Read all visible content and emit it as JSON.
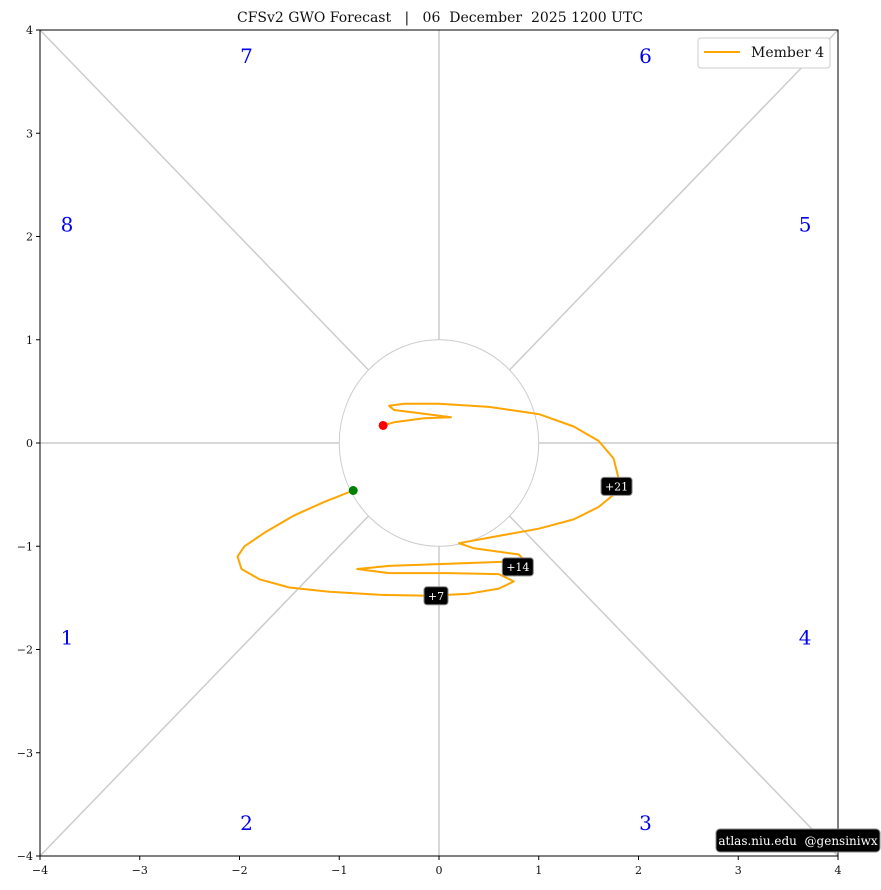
{
  "chart_data": {
    "type": "line",
    "title": "CFSv2 GWO Forecast   |   06  December  2025 1200 UTC",
    "xlim": [
      -4,
      4
    ],
    "ylim": [
      -4,
      4
    ],
    "xticks": [
      "−4",
      "−3",
      "−2",
      "−1",
      "0",
      "1",
      "2",
      "3",
      "4"
    ],
    "yticks": [
      "−4",
      "−3",
      "−2",
      "−1",
      "0",
      "1",
      "2",
      "3",
      "4"
    ],
    "grid": false,
    "legend": {
      "placement": "top-right",
      "entries": [
        "Member 4"
      ]
    },
    "unit_circle_radius": 1,
    "phases": [
      {
        "label": "1",
        "x": -3.73,
        "y": -1.95
      },
      {
        "label": "2",
        "x": -1.93,
        "y": -3.75
      },
      {
        "label": "3",
        "x": 2.07,
        "y": -3.75
      },
      {
        "label": "4",
        "x": 3.67,
        "y": -1.95
      },
      {
        "label": "5",
        "x": 3.67,
        "y": 2.05
      },
      {
        "label": "6",
        "x": 2.07,
        "y": 3.68
      },
      {
        "label": "7",
        "x": -1.93,
        "y": 3.68
      },
      {
        "label": "8",
        "x": -3.73,
        "y": 2.05
      }
    ],
    "series": [
      {
        "name": "Member 4",
        "color": "#ffa500",
        "x": [
          -0.86,
          -1.15,
          -1.45,
          -1.75,
          -1.95,
          -2.02,
          -1.98,
          -1.8,
          -1.5,
          -1.1,
          -0.6,
          -0.1,
          0.3,
          0.6,
          0.75,
          0.6,
          0.1,
          -0.5,
          -0.82,
          -0.5,
          0.1,
          0.65,
          0.85,
          0.8,
          0.35,
          0.2,
          0.6,
          1.0,
          1.35,
          1.6,
          1.75,
          1.8,
          1.75,
          1.6,
          1.35,
          1.0,
          0.5,
          0.0,
          -0.35,
          -0.5,
          -0.45,
          -0.2,
          0.12,
          -0.15,
          -0.45,
          -0.56
        ],
        "y": [
          -0.46,
          -0.57,
          -0.7,
          -0.87,
          -1.0,
          -1.1,
          -1.22,
          -1.32,
          -1.4,
          -1.44,
          -1.47,
          -1.48,
          -1.46,
          -1.41,
          -1.34,
          -1.27,
          -1.26,
          -1.26,
          -1.22,
          -1.19,
          -1.17,
          -1.15,
          -1.13,
          -1.08,
          -1.02,
          -0.97,
          -0.9,
          -0.83,
          -0.74,
          -0.62,
          -0.5,
          -0.34,
          -0.15,
          0.02,
          0.16,
          0.28,
          0.35,
          0.38,
          0.38,
          0.36,
          0.32,
          0.29,
          0.25,
          0.24,
          0.2,
          0.17
        ]
      }
    ],
    "start_point": {
      "x": -0.86,
      "y": -0.46,
      "color": "#008000"
    },
    "end_point": {
      "x": -0.56,
      "y": 0.17,
      "color": "#ff0000"
    },
    "day_labels": [
      {
        "text": "+7",
        "x": -0.03,
        "y": -1.48
      },
      {
        "text": "+14",
        "x": 0.79,
        "y": -1.2
      },
      {
        "text": "+21",
        "x": 1.78,
        "y": -0.42
      }
    ],
    "credit": "atlas.niu.edu  @gensiniwx"
  }
}
